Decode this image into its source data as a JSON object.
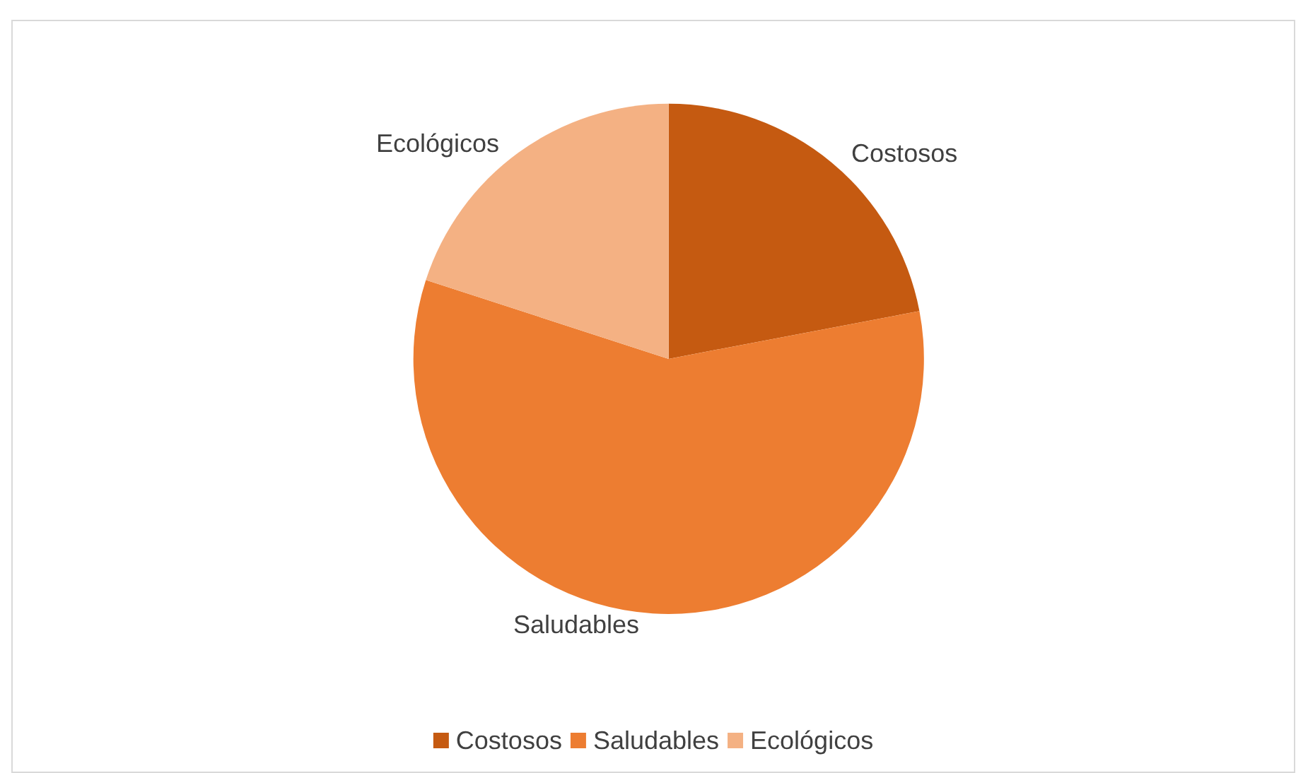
{
  "chart_data": {
    "type": "pie",
    "categories": [
      "Costosos",
      "Saludables",
      "Ecológicos"
    ],
    "values": [
      22,
      58,
      20
    ],
    "colors": [
      "#c55a11",
      "#ed7d31",
      "#f4b183"
    ],
    "legend": "bottom"
  }
}
